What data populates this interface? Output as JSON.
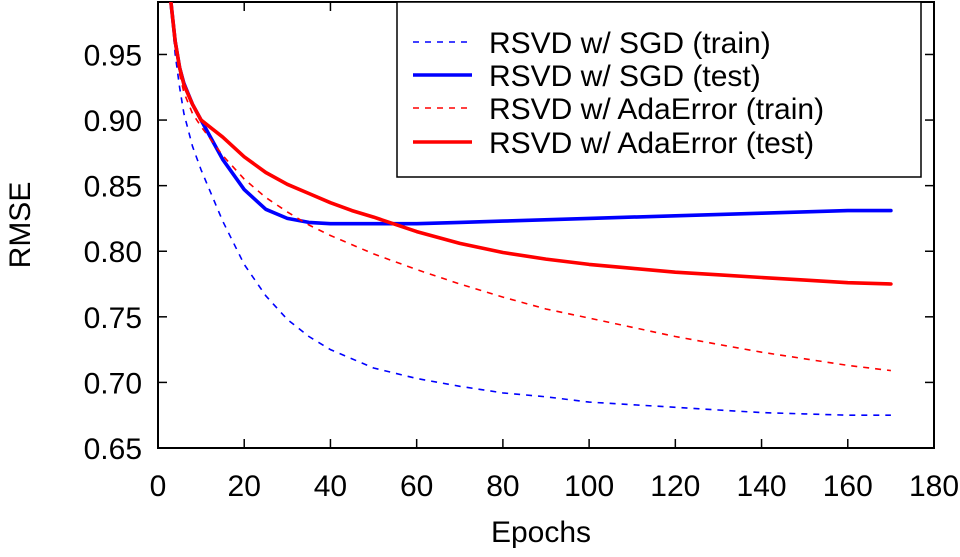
{
  "chart_data": {
    "type": "line",
    "xlabel": "Epochs",
    "ylabel": "RMSE",
    "xlim": [
      0,
      180
    ],
    "ylim": [
      0.65,
      0.99
    ],
    "xticks": [
      0,
      20,
      40,
      60,
      80,
      100,
      120,
      140,
      160,
      180
    ],
    "yticks": [
      0.65,
      0.7,
      0.75,
      0.8,
      0.85,
      0.9,
      0.95
    ],
    "ytick_labels": [
      "0.65",
      "0.70",
      "0.75",
      "0.80",
      "0.85",
      "0.90",
      "0.95"
    ],
    "grid": false,
    "legend_position": "top-right",
    "series": [
      {
        "name": "RSVD w/ SGD (train)",
        "color": "#0000ff",
        "style": "dashed",
        "x": [
          3,
          4,
          5,
          6,
          8,
          10,
          15,
          20,
          25,
          30,
          35,
          40,
          50,
          60,
          70,
          80,
          90,
          100,
          110,
          120,
          130,
          140,
          150,
          160,
          170
        ],
        "y": [
          0.99,
          0.95,
          0.925,
          0.905,
          0.88,
          0.862,
          0.823,
          0.79,
          0.766,
          0.748,
          0.735,
          0.725,
          0.711,
          0.703,
          0.697,
          0.692,
          0.689,
          0.685,
          0.683,
          0.681,
          0.679,
          0.677,
          0.676,
          0.675,
          0.675
        ]
      },
      {
        "name": "RSVD w/ SGD (test)",
        "color": "#0000ff",
        "style": "solid",
        "x": [
          3,
          4,
          5,
          6,
          8,
          10,
          15,
          20,
          25,
          30,
          35,
          40,
          45,
          50,
          60,
          70,
          80,
          100,
          120,
          140,
          160,
          170
        ],
        "y": [
          0.99,
          0.96,
          0.94,
          0.928,
          0.912,
          0.9,
          0.87,
          0.847,
          0.832,
          0.825,
          0.822,
          0.821,
          0.821,
          0.821,
          0.821,
          0.822,
          0.823,
          0.825,
          0.827,
          0.829,
          0.831,
          0.831
        ]
      },
      {
        "name": "RSVD w/ AdaError (train)",
        "color": "#ff0000",
        "style": "dashed",
        "x": [
          3,
          4,
          5,
          6,
          8,
          10,
          15,
          20,
          25,
          30,
          35,
          40,
          50,
          60,
          70,
          80,
          90,
          100,
          110,
          120,
          130,
          140,
          150,
          160,
          170
        ],
        "y": [
          0.99,
          0.955,
          0.935,
          0.921,
          0.905,
          0.895,
          0.873,
          0.855,
          0.841,
          0.83,
          0.82,
          0.812,
          0.798,
          0.786,
          0.775,
          0.765,
          0.756,
          0.749,
          0.742,
          0.735,
          0.729,
          0.723,
          0.718,
          0.713,
          0.709
        ]
      },
      {
        "name": "RSVD w/ AdaError (test)",
        "color": "#ff0000",
        "style": "solid",
        "x": [
          3,
          4,
          5,
          6,
          8,
          10,
          15,
          20,
          25,
          30,
          35,
          40,
          45,
          50,
          60,
          70,
          80,
          90,
          100,
          110,
          120,
          130,
          140,
          150,
          160,
          170
        ],
        "y": [
          0.99,
          0.96,
          0.94,
          0.927,
          0.912,
          0.9,
          0.887,
          0.872,
          0.86,
          0.851,
          0.844,
          0.837,
          0.831,
          0.826,
          0.815,
          0.806,
          0.799,
          0.794,
          0.79,
          0.787,
          0.784,
          0.782,
          0.78,
          0.778,
          0.776,
          0.775
        ]
      }
    ]
  }
}
